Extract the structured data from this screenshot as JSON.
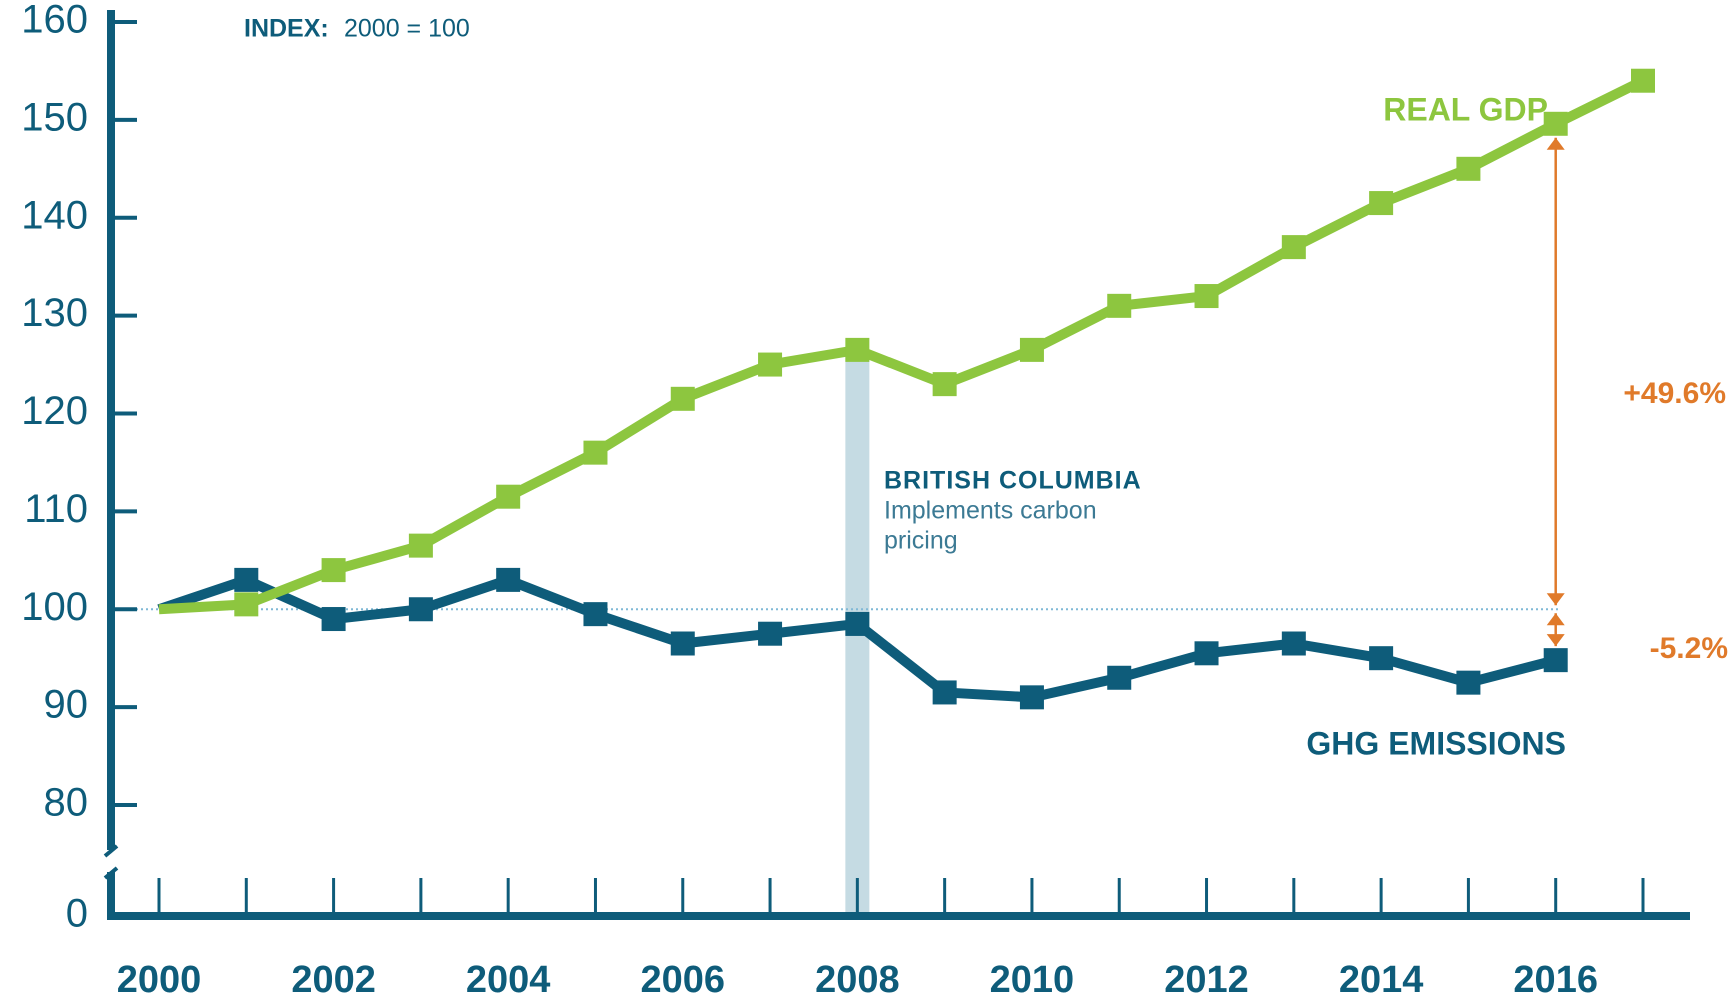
{
  "chart_data": {
    "type": "line",
    "annotations": {
      "index_bold": "INDEX:",
      "index_rest": "2000 = 100",
      "event_title": "BRITISH COLUMBIA",
      "event_line1": "Implements carbon",
      "event_line2": "pricing",
      "gdp_change": "+49.6%",
      "ghg_change": "-5.2%"
    },
    "x": [
      2000,
      2001,
      2002,
      2003,
      2004,
      2005,
      2006,
      2007,
      2008,
      2009,
      2010,
      2011,
      2012,
      2013,
      2014,
      2015,
      2016,
      2017
    ],
    "series": [
      {
        "name": "REAL GDP",
        "color": "#8dc63f",
        "values": [
          100,
          100.5,
          104,
          106.5,
          111.5,
          116,
          121.5,
          125,
          126.5,
          123,
          126.5,
          131,
          132,
          137,
          141.5,
          145,
          149.6,
          154
        ]
      },
      {
        "name": "GHG EMISSIONS",
        "color": "#0e5c7a",
        "values": [
          100,
          103,
          99,
          100,
          103,
          99.5,
          96.5,
          97.5,
          98.5,
          91.5,
          91,
          93,
          95.5,
          96.5,
          95,
          92.5,
          94.8,
          null
        ]
      }
    ],
    "xlim": [
      2000,
      2017
    ],
    "xticks": [
      2000,
      2002,
      2004,
      2006,
      2008,
      2010,
      2012,
      2014,
      2016
    ],
    "ylim": [
      80,
      160
    ],
    "yticks": [
      0,
      80,
      90,
      100,
      110,
      120,
      130,
      140,
      150,
      160
    ],
    "axis_break": true,
    "reference_line": 100,
    "highlight_x": 2008,
    "annotation_color": "#e07a2a"
  }
}
